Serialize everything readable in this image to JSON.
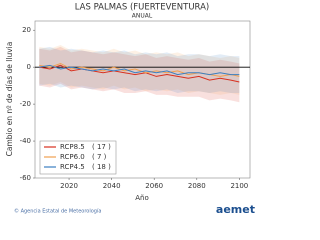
{
  "chart_data": {
    "type": "line",
    "title": "LAS PALMAS (FUERTEVENTURA)",
    "subtitle": "ANUAL",
    "xlabel": "Año",
    "ylabel": "Cambio en nº de días de lluvia",
    "footer": "© Agencia Estatal de Meteorología",
    "logo": "aemet",
    "x": [
      2006,
      2011,
      2016,
      2021,
      2026,
      2031,
      2036,
      2041,
      2046,
      2051,
      2056,
      2061,
      2066,
      2071,
      2076,
      2081,
      2086,
      2091,
      2096,
      2100
    ],
    "series": [
      {
        "name": "RCP8.5",
        "color": "#d7301f",
        "count": {
          "value": 17,
          "label": "( 17 )"
        },
        "values": [
          0,
          -1,
          1,
          -2,
          -1,
          -2,
          -3,
          -2,
          -3,
          -4,
          -3,
          -5,
          -4,
          -5,
          -6,
          -5,
          -7,
          -6,
          -7,
          -8
        ],
        "lower": [
          -10,
          -11,
          -9,
          -12,
          -11,
          -12,
          -13,
          -12,
          -14,
          -14,
          -13,
          -15,
          -15,
          -16,
          -16,
          -16,
          -18,
          -17,
          -18,
          -19
        ],
        "upper": [
          10,
          9,
          11,
          8,
          9,
          8,
          7,
          8,
          7,
          6,
          7,
          5,
          6,
          5,
          4,
          5,
          3,
          4,
          3,
          2
        ]
      },
      {
        "name": "RCP6.0",
        "color": "#f0a050",
        "count": {
          "value": 7,
          "label": "( 7 )"
        },
        "values": [
          1,
          0,
          2,
          -1,
          0,
          -1,
          -2,
          0,
          -2,
          -1,
          -3,
          -2,
          -3,
          -2,
          -4,
          -3,
          -4,
          -5,
          -4,
          -5
        ],
        "lower": [
          -9,
          -10,
          -8,
          -11,
          -10,
          -11,
          -12,
          -10,
          -12,
          -11,
          -13,
          -12,
          -13,
          -12,
          -14,
          -13,
          -14,
          -15,
          -14,
          -15
        ],
        "upper": [
          11,
          10,
          12,
          9,
          10,
          9,
          8,
          10,
          8,
          9,
          7,
          8,
          7,
          8,
          6,
          7,
          6,
          5,
          6,
          5
        ]
      },
      {
        "name": "RCP4.5",
        "color": "#3b7fc0",
        "count": {
          "value": 18,
          "label": "( 18 )"
        },
        "values": [
          0,
          1,
          -1,
          0,
          -1,
          -2,
          -1,
          -2,
          -1,
          -3,
          -2,
          -3,
          -2,
          -4,
          -3,
          -3,
          -4,
          -3,
          -4,
          -4
        ],
        "lower": [
          -10,
          -9,
          -11,
          -10,
          -11,
          -12,
          -11,
          -12,
          -11,
          -13,
          -12,
          -13,
          -12,
          -14,
          -13,
          -13,
          -14,
          -13,
          -14,
          -14
        ],
        "upper": [
          10,
          11,
          9,
          10,
          9,
          8,
          9,
          8,
          9,
          7,
          8,
          7,
          8,
          6,
          7,
          7,
          6,
          7,
          6,
          6
        ]
      }
    ],
    "xlim": [
      2004,
      2105
    ],
    "xticks": [
      2020,
      2040,
      2060,
      2080,
      2100
    ],
    "ylim": [
      -60,
      25
    ],
    "yticks": [
      -60,
      -40,
      -20,
      0,
      20
    ],
    "zero_line": 0
  }
}
